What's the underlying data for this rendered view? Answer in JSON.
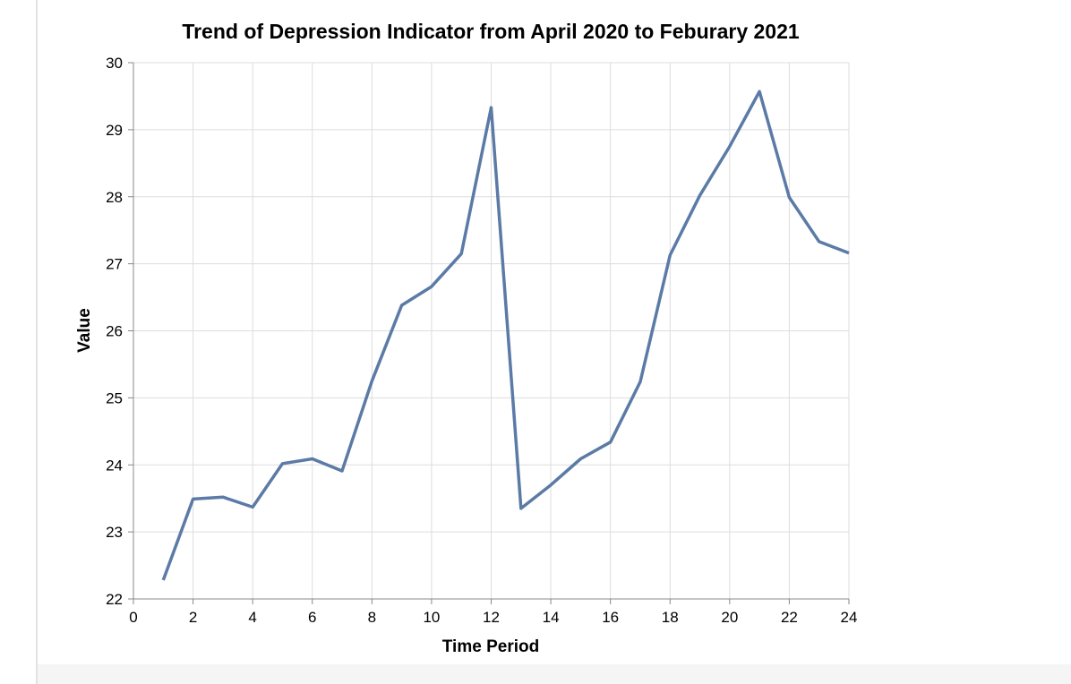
{
  "chart_data": {
    "type": "line",
    "title": "Trend of Depression Indicator from April 2020 to Feburary 2021",
    "xlabel": "Time Period",
    "ylabel": "Value",
    "xlim": [
      0,
      24
    ],
    "ylim": [
      22,
      30
    ],
    "x_ticks": [
      0,
      2,
      4,
      6,
      8,
      10,
      12,
      14,
      16,
      18,
      20,
      22,
      24
    ],
    "y_ticks": [
      22,
      23,
      24,
      25,
      26,
      27,
      28,
      29,
      30
    ],
    "grid": true,
    "line_color": "#5b7ba6",
    "series": [
      {
        "x": [
          1,
          2,
          3,
          4,
          5,
          6,
          7,
          8,
          9,
          10,
          11,
          12,
          13,
          14,
          15,
          16,
          17,
          18,
          19,
          20,
          21,
          22,
          23,
          24
        ],
        "values": [
          22.28,
          23.49,
          23.52,
          23.37,
          24.02,
          24.09,
          23.91,
          25.25,
          26.38,
          26.66,
          27.15,
          29.33,
          23.35,
          23.7,
          24.09,
          24.34,
          25.24,
          27.13,
          28.02,
          28.75,
          29.57,
          27.99,
          27.33,
          27.16
        ]
      }
    ]
  },
  "colors": {
    "grid": "#dddddd",
    "axis": "#888888",
    "line": "#5b7ba6"
  }
}
